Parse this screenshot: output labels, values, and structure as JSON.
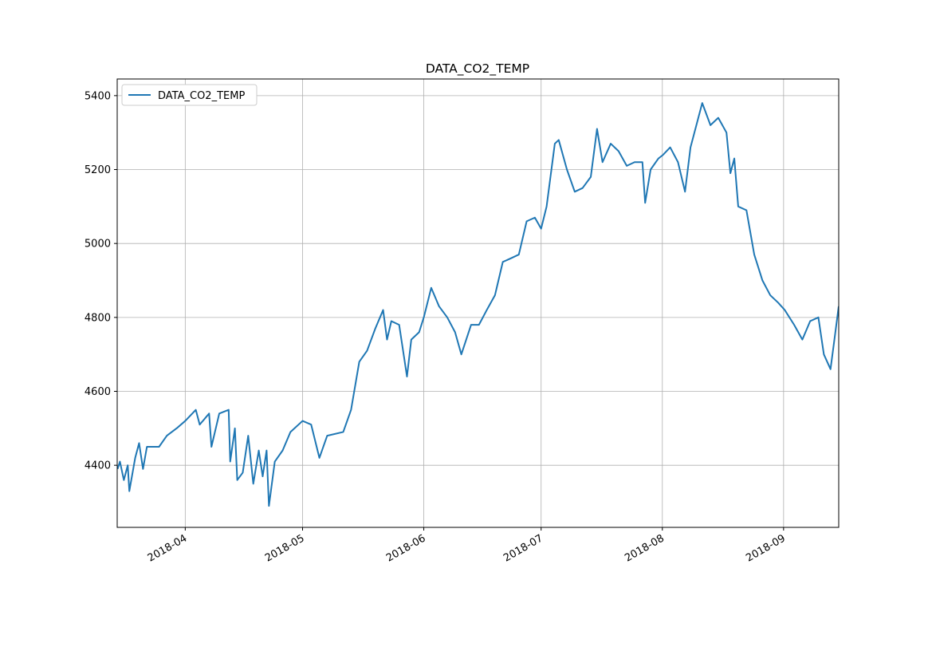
{
  "chart_data": {
    "type": "line",
    "title": "DATA_CO2_TEMP",
    "x": [
      73.7,
      74.3,
      75.3,
      76.3,
      76.7,
      78.2,
      79.2,
      80.2,
      81.2,
      84.3,
      86.3,
      88.8,
      91.0,
      93.7,
      94.7,
      97.1,
      97.7,
      99.7,
      102.1,
      102.5,
      103.7,
      104.3,
      105.7,
      107.1,
      108.4,
      109.8,
      110.8,
      111.8,
      112.4,
      113.9,
      115.9,
      117.9,
      121.0,
      123.2,
      125.3,
      127.3,
      131.4,
      133.4,
      135.5,
      137.5,
      139.6,
      141.6,
      142.6,
      143.7,
      145.7,
      147.7,
      148.8,
      150.8,
      152.0,
      153.9,
      155.9,
      158.0,
      160.0,
      161.6,
      164.1,
      166.1,
      168.1,
      170.2,
      172.2,
      174.3,
      176.3,
      178.3,
      180.4,
      182.0,
      183.4,
      185.5,
      186.5,
      188.6,
      190.6,
      192.6,
      194.7,
      196.3,
      197.7,
      199.8,
      201.8,
      203.9,
      205.9,
      207.9,
      208.6,
      210.0,
      212.0,
      213.2,
      215.0,
      217.0,
      218.8,
      220.2,
      222.2,
      223.2,
      225.3,
      227.3,
      229.4,
      230.4,
      231.4,
      232.4,
      234.5,
      236.5,
      238.6,
      240.6,
      242.6,
      244.3,
      246.7,
      248.8,
      250.8,
      252.9,
      254.3,
      256.0,
      257.0,
      258.1
    ],
    "series": [
      {
        "name": "DATA_CO2_TEMP",
        "color": "#1f77b4",
        "values": [
          4390,
          4410,
          4360,
          4400,
          4330,
          4420,
          4460,
          4390,
          4450,
          4450,
          4480,
          4500,
          4520,
          4550,
          4510,
          4540,
          4450,
          4540,
          4550,
          4410,
          4500,
          4360,
          4380,
          4480,
          4350,
          4440,
          4370,
          4440,
          4290,
          4410,
          4440,
          4490,
          4520,
          4510,
          4420,
          4480,
          4490,
          4550,
          4680,
          4710,
          4770,
          4820,
          4740,
          4790,
          4780,
          4640,
          4740,
          4760,
          4800,
          4880,
          4830,
          4800,
          4760,
          4700,
          4780,
          4780,
          4820,
          4860,
          4950,
          4960,
          4970,
          5060,
          5070,
          5040,
          5100,
          5270,
          5280,
          5200,
          5140,
          5150,
          5180,
          5310,
          5220,
          5270,
          5250,
          5210,
          5220,
          5220,
          5110,
          5200,
          5230,
          5240,
          5260,
          5220,
          5140,
          5260,
          5340,
          5380,
          5320,
          5340,
          5300,
          5190,
          5230,
          5100,
          5090,
          4970,
          4900,
          4860,
          4840,
          4820,
          4780,
          4740,
          4790,
          4800,
          4700,
          4660,
          4740,
          4830
        ]
      }
    ],
    "xlim": [
      73.6,
      258.1
    ],
    "xticks": [
      {
        "value": 91,
        "label": "2018-04"
      },
      {
        "value": 121,
        "label": "2018-05"
      },
      {
        "value": 152,
        "label": "2018-06"
      },
      {
        "value": 182,
        "label": "2018-07"
      },
      {
        "value": 213,
        "label": "2018-08"
      },
      {
        "value": 244,
        "label": "2018-09"
      }
    ],
    "ylim": [
      4232,
      5445
    ],
    "yticks": [
      4400,
      4600,
      4800,
      5000,
      5200,
      5400
    ],
    "grid": true,
    "legend": "upper-left"
  }
}
